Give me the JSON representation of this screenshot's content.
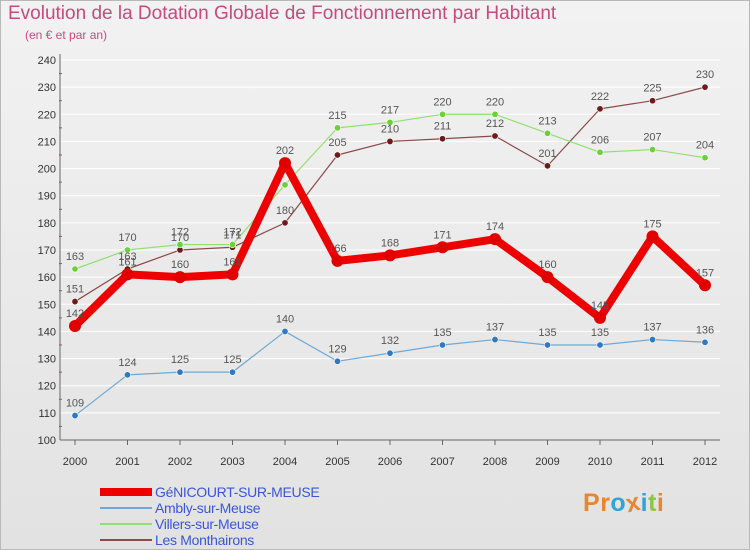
{
  "title": "Evolution de la Dotation Globale de Fonctionnement par Habitant",
  "subtitle": "(en € et par an)",
  "logo": {
    "letters": [
      "P",
      "r",
      "o",
      "x",
      "i",
      "t",
      "i"
    ],
    "colors": [
      "#e8862f",
      "#e8862f",
      "#2fa4d8",
      "#e8862f",
      "#2fa4d8",
      "#8cc640",
      "#e8862f"
    ]
  },
  "colors": {
    "title": "#c84a7c",
    "legend_text": "#3a56d6",
    "axis": "#666666",
    "grid": "#ffffff"
  },
  "chart_data": {
    "type": "line",
    "title": "Evolution de la Dotation Globale de Fonctionnement par Habitant",
    "subtitle": "(en € et par an)",
    "xlabel": "",
    "ylabel": "",
    "x": [
      "2000",
      "2001",
      "2002",
      "2003",
      "2004",
      "2005",
      "2006",
      "2007",
      "2008",
      "2009",
      "2010",
      "2011",
      "2012"
    ],
    "ylim": [
      100,
      240
    ],
    "yticks": [
      100,
      110,
      120,
      130,
      140,
      150,
      160,
      170,
      180,
      190,
      200,
      210,
      220,
      230,
      240
    ],
    "grid": "horizontal",
    "legend_position": "bottom-left",
    "series": [
      {
        "name": "GéNICOURT-SUR-MEUSE",
        "color": "#ee0000",
        "marker_color": "#e00000",
        "line_width": 8,
        "marker_size": 6,
        "label_color": "#555555",
        "values": [
          142,
          161,
          160,
          161,
          202,
          166,
          168,
          171,
          174,
          160,
          145,
          175,
          157
        ],
        "labels": [
          "142",
          "161",
          "160",
          "161",
          "202",
          "166",
          "168",
          "171",
          "174",
          "160",
          "145",
          "175",
          "157"
        ]
      },
      {
        "name": "Ambly-sur-Meuse",
        "color": "#6ea8d8",
        "marker_color": "#2e78c4",
        "line_width": 1.2,
        "marker_size": 3.2,
        "label_color": "#555555",
        "values": [
          109,
          124,
          125,
          125,
          140,
          129,
          132,
          135,
          137,
          135,
          135,
          137,
          136
        ],
        "labels": [
          "109",
          "124",
          "125",
          "125",
          "140",
          "129",
          "132",
          "135",
          "137",
          "135",
          "135",
          "137",
          "136"
        ]
      },
      {
        "name": "Villers-sur-Meuse",
        "color": "#8fe070",
        "marker_color": "#6ccf3c",
        "line_width": 1.2,
        "marker_size": 3.2,
        "label_color": "#555555",
        "values": [
          163,
          170,
          172,
          172,
          194,
          215,
          217,
          220,
          220,
          213,
          206,
          207,
          204
        ],
        "labels": [
          "163",
          "170",
          "172",
          "172",
          "",
          "215",
          "217",
          "220",
          "220",
          "213",
          "206",
          "207",
          "204"
        ]
      },
      {
        "name": "Les Monthairons",
        "color": "#8b4a4a",
        "marker_color": "#6e1a1a",
        "line_width": 1.2,
        "marker_size": 3.2,
        "label_color": "#555555",
        "values": [
          151,
          163,
          170,
          171,
          180,
          205,
          210,
          211,
          212,
          201,
          222,
          225,
          230
        ],
        "labels": [
          "151",
          "163",
          "170",
          "171",
          "180",
          "205",
          "210",
          "211",
          "212",
          "201",
          "222",
          "225",
          "230"
        ]
      }
    ]
  }
}
